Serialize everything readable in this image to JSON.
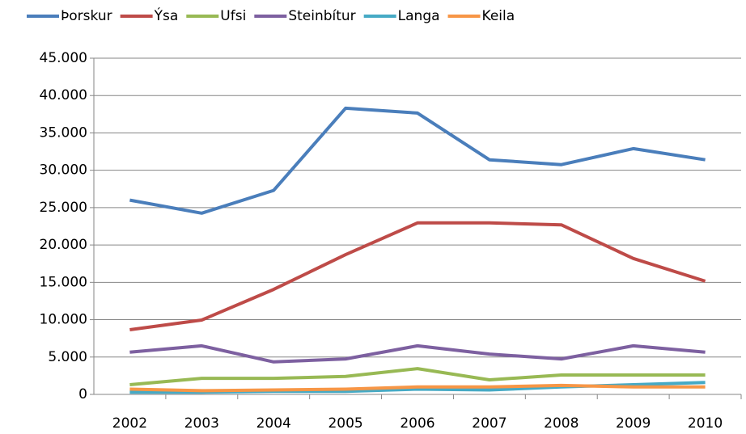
{
  "chart_data": {
    "type": "line",
    "categories": [
      "2002",
      "2003",
      "2004",
      "2005",
      "2006",
      "2007",
      "2008",
      "2009",
      "2010"
    ],
    "series": [
      {
        "name": "Þorskur",
        "color": "#4a7ebb",
        "values": [
          26000,
          24250,
          27300,
          38300,
          37650,
          31400,
          30750,
          32900,
          31400
        ]
      },
      {
        "name": "Ýsa",
        "color": "#be4b48",
        "values": [
          8650,
          9950,
          14050,
          18700,
          22950,
          22950,
          22700,
          18200,
          15150
        ]
      },
      {
        "name": "Ufsi",
        "color": "#98b954",
        "values": [
          1300,
          2150,
          2150,
          2400,
          3450,
          1950,
          2600,
          2600,
          2600
        ]
      },
      {
        "name": "Steinbítur",
        "color": "#7d60a0",
        "values": [
          5650,
          6500,
          4350,
          4750,
          6500,
          5400,
          4750,
          6500,
          5650
        ]
      },
      {
        "name": "Langa",
        "color": "#46aac5",
        "values": [
          300,
          300,
          400,
          400,
          700,
          600,
          1000,
          1300,
          1600
        ]
      },
      {
        "name": "Keila",
        "color": "#f79646",
        "values": [
          700,
          500,
          600,
          700,
          1000,
          1000,
          1200,
          1000,
          1000
        ]
      }
    ],
    "ylim": [
      0,
      45000
    ],
    "yticks": [
      0,
      {
        "value": 5000,
        "label": "5.000"
      },
      {
        "value": 10000,
        "label": "10.000"
      },
      {
        "value": 15000,
        "label": "15.000"
      },
      {
        "value": 20000,
        "label": "20.000"
      },
      {
        "value": 25000,
        "label": "25.000"
      },
      {
        "value": 30000,
        "label": "30.000"
      },
      {
        "value": 35000,
        "label": "35.000"
      },
      {
        "value": 40000,
        "label": "40.000"
      },
      {
        "value": 45000,
        "label": "45.000"
      }
    ],
    "grid": true,
    "legend": "top"
  }
}
